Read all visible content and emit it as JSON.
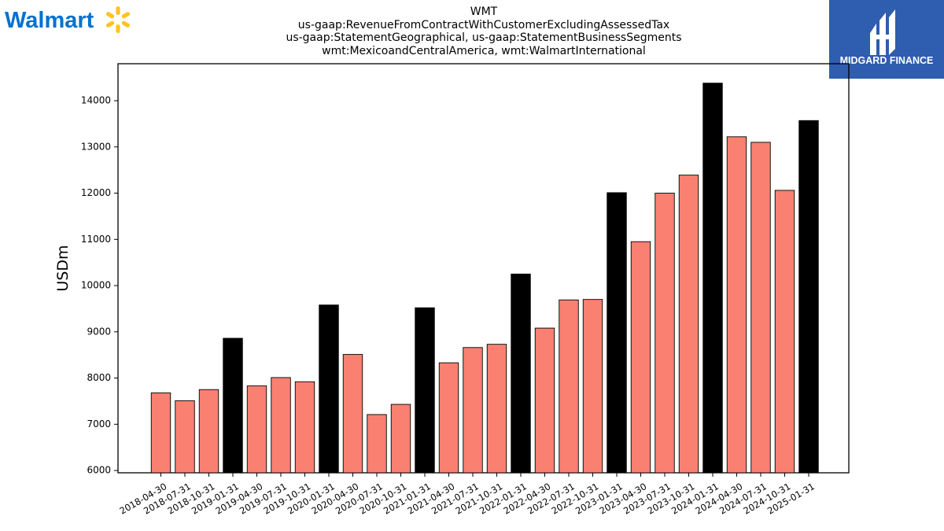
{
  "brand": {
    "walmart_wordmark": "Walmart",
    "walmart_color": "#0071ce",
    "spark_color": "#ffc220",
    "midgard_text": "MIDGARD FINANCE",
    "midgard_bg": "#2f5db0"
  },
  "colors": {
    "regular_bar": "#fa8072",
    "q4_bar": "#000000"
  },
  "chart_data": {
    "type": "bar",
    "title": "WMT",
    "subtitle_lines": [
      "us-gaap:RevenueFromContractWithCustomerExcludingAssessedTax",
      "us-gaap:StatementGeographical, us-gaap:StatementBusinessSegments",
      "wmt:MexicoandCentralAmerica, wmt:WalmartInternational"
    ],
    "ylabel": "USDm",
    "xlabel": "",
    "ylim": [
      5950,
      14800
    ],
    "yticks": [
      6000,
      7000,
      8000,
      9000,
      10000,
      11000,
      12000,
      13000,
      14000
    ],
    "grid": false,
    "categories": [
      "2018-04-30",
      "2018-07-31",
      "2018-10-31",
      "2019-01-31",
      "2019-04-30",
      "2019-07-31",
      "2019-10-31",
      "2020-01-31",
      "2020-04-30",
      "2020-07-31",
      "2020-10-31",
      "2021-01-31",
      "2021-04-30",
      "2021-07-31",
      "2021-10-31",
      "2022-01-31",
      "2022-04-30",
      "2022-07-31",
      "2022-10-31",
      "2023-01-31",
      "2023-04-30",
      "2023-07-31",
      "2023-10-31",
      "2024-01-31",
      "2024-04-30",
      "2024-07-31",
      "2024-10-31",
      "2025-01-31"
    ],
    "values": [
      7680,
      7510,
      7750,
      8860,
      7830,
      8010,
      7920,
      9580,
      8510,
      7210,
      7430,
      9520,
      8330,
      8660,
      8730,
      10250,
      9080,
      9690,
      9700,
      12010,
      10950,
      12000,
      12390,
      14380,
      13220,
      13100,
      12060,
      13570
    ],
    "highlight": [
      false,
      false,
      false,
      true,
      false,
      false,
      false,
      true,
      false,
      false,
      false,
      true,
      false,
      false,
      false,
      true,
      false,
      false,
      false,
      true,
      false,
      false,
      false,
      true,
      false,
      false,
      false,
      true
    ]
  }
}
